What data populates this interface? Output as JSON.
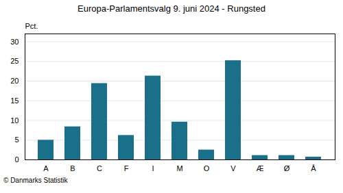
{
  "chart_data": {
    "type": "bar",
    "title": "Europa-Parlamentsvalg 9. juni 2024 - Rungsted",
    "categories": [
      "A",
      "B",
      "C",
      "F",
      "I",
      "M",
      "O",
      "V",
      "Æ",
      "Ø",
      "Å"
    ],
    "values": [
      5.0,
      8.4,
      19.4,
      6.2,
      21.3,
      9.6,
      2.5,
      25.2,
      1.1,
      1.1,
      0.7
    ],
    "color": "#1a6f8a",
    "ylabel": "Pct.",
    "caption": "© Danmarks Statistik",
    "ylim": [
      0,
      32
    ],
    "yticks": [
      0,
      5,
      10,
      15,
      20,
      25,
      30
    ],
    "grid": true
  }
}
